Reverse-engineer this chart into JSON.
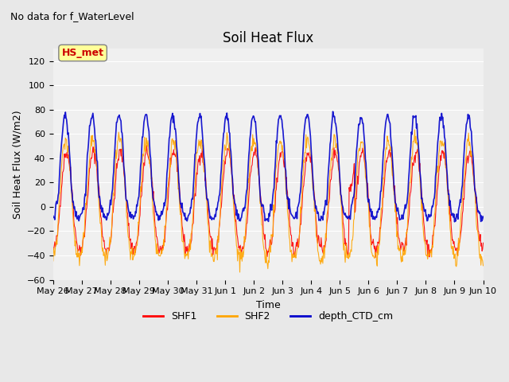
{
  "title": "Soil Heat Flux",
  "suptitle": "No data for f_WaterLevel",
  "ylabel": "Soil Heat Flux (W/m2)",
  "xlabel": "Time",
  "ylim": [
    -60,
    130
  ],
  "yticks": [
    -60,
    -40,
    -20,
    0,
    20,
    40,
    60,
    80,
    100,
    120
  ],
  "xtick_labels": [
    "May 26",
    "May 27",
    "May 28",
    "May 29",
    "May 30",
    "May 31",
    "Jun 1",
    "Jun 2",
    "Jun 3",
    "Jun 4",
    "Jun 5",
    "Jun 6",
    "Jun 7",
    "Jun 8",
    "Jun 9",
    "Jun 10"
  ],
  "legend_labels": [
    "SHF1",
    "SHF2",
    "depth_CTD_cm"
  ],
  "legend_colors": [
    "#FF0000",
    "#FFA500",
    "#0000CC"
  ],
  "annotation_text": "HS_met",
  "annotation_color": "#CC0000",
  "annotation_bg": "#FFFF99",
  "bg_color": "#E8E8E8",
  "plot_bg_color": "#F0F0F0",
  "grid_color": "#FFFFFF",
  "n_days": 16,
  "shf1_amplitude": 40,
  "shf2_amplitude": 50,
  "ctd_amplitude": 55,
  "shf1_color": "#FF0000",
  "shf2_color": "#FFA500",
  "ctd_color": "#0000CC"
}
